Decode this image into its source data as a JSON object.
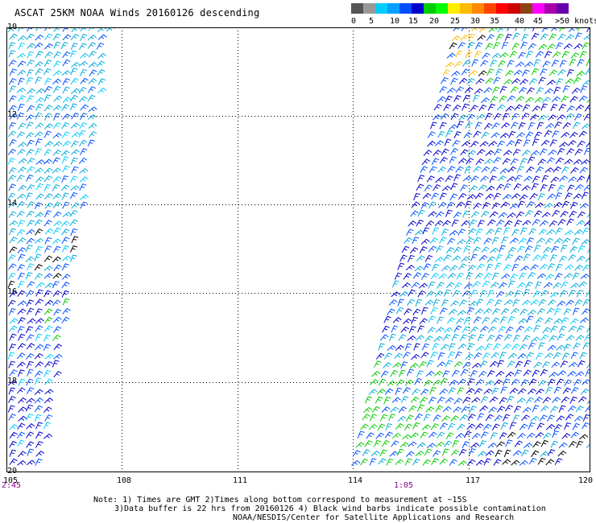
{
  "title": "ASCAT 25KM NOAA Winds 20160126 descending",
  "scale": {
    "labels": [
      "0",
      "5",
      "10",
      "15",
      "20",
      "25",
      "30",
      "35",
      "40",
      "45",
      ">50 knots"
    ],
    "colors": [
      "#555555",
      "#999999",
      "#00ccff",
      "#00a0ff",
      "#0050ff",
      "#0000cc",
      "#00cc00",
      "#00ff00",
      "#ffee00",
      "#ffbb00",
      "#ff8800",
      "#ff4400",
      "#ff0000",
      "#cc0000",
      "#8b4513",
      "#ff00ff",
      "#aa00aa",
      "#6600aa"
    ]
  },
  "axes": {
    "lat_labels": [
      "10",
      "12",
      "14",
      "16",
      "18",
      "20"
    ],
    "lon_labels": [
      "105",
      "108",
      "111",
      "114",
      "117",
      "120"
    ]
  },
  "times": {
    "left": "2:45",
    "right": "1:05"
  },
  "notes": {
    "line1": "Note: 1) Times are GMT 2)Times along bottom correspond to measurement at ~15S",
    "line2": "3)Data buffer is 22 hrs from 20160126 4) Black wind barbs indicate possible contamination",
    "line3": "NOAA/NESDIS/Center for Satellite Applications and Research"
  },
  "map_data": {
    "type": "wind-barb-swath",
    "lat_range": [
      -20,
      -10
    ],
    "lon_range": [
      105,
      120
    ],
    "swaths": [
      {
        "name": "west",
        "dominant_speed_kt": "10-20"
      },
      {
        "name": "east",
        "dominant_speed_kt": "10-25"
      }
    ]
  }
}
